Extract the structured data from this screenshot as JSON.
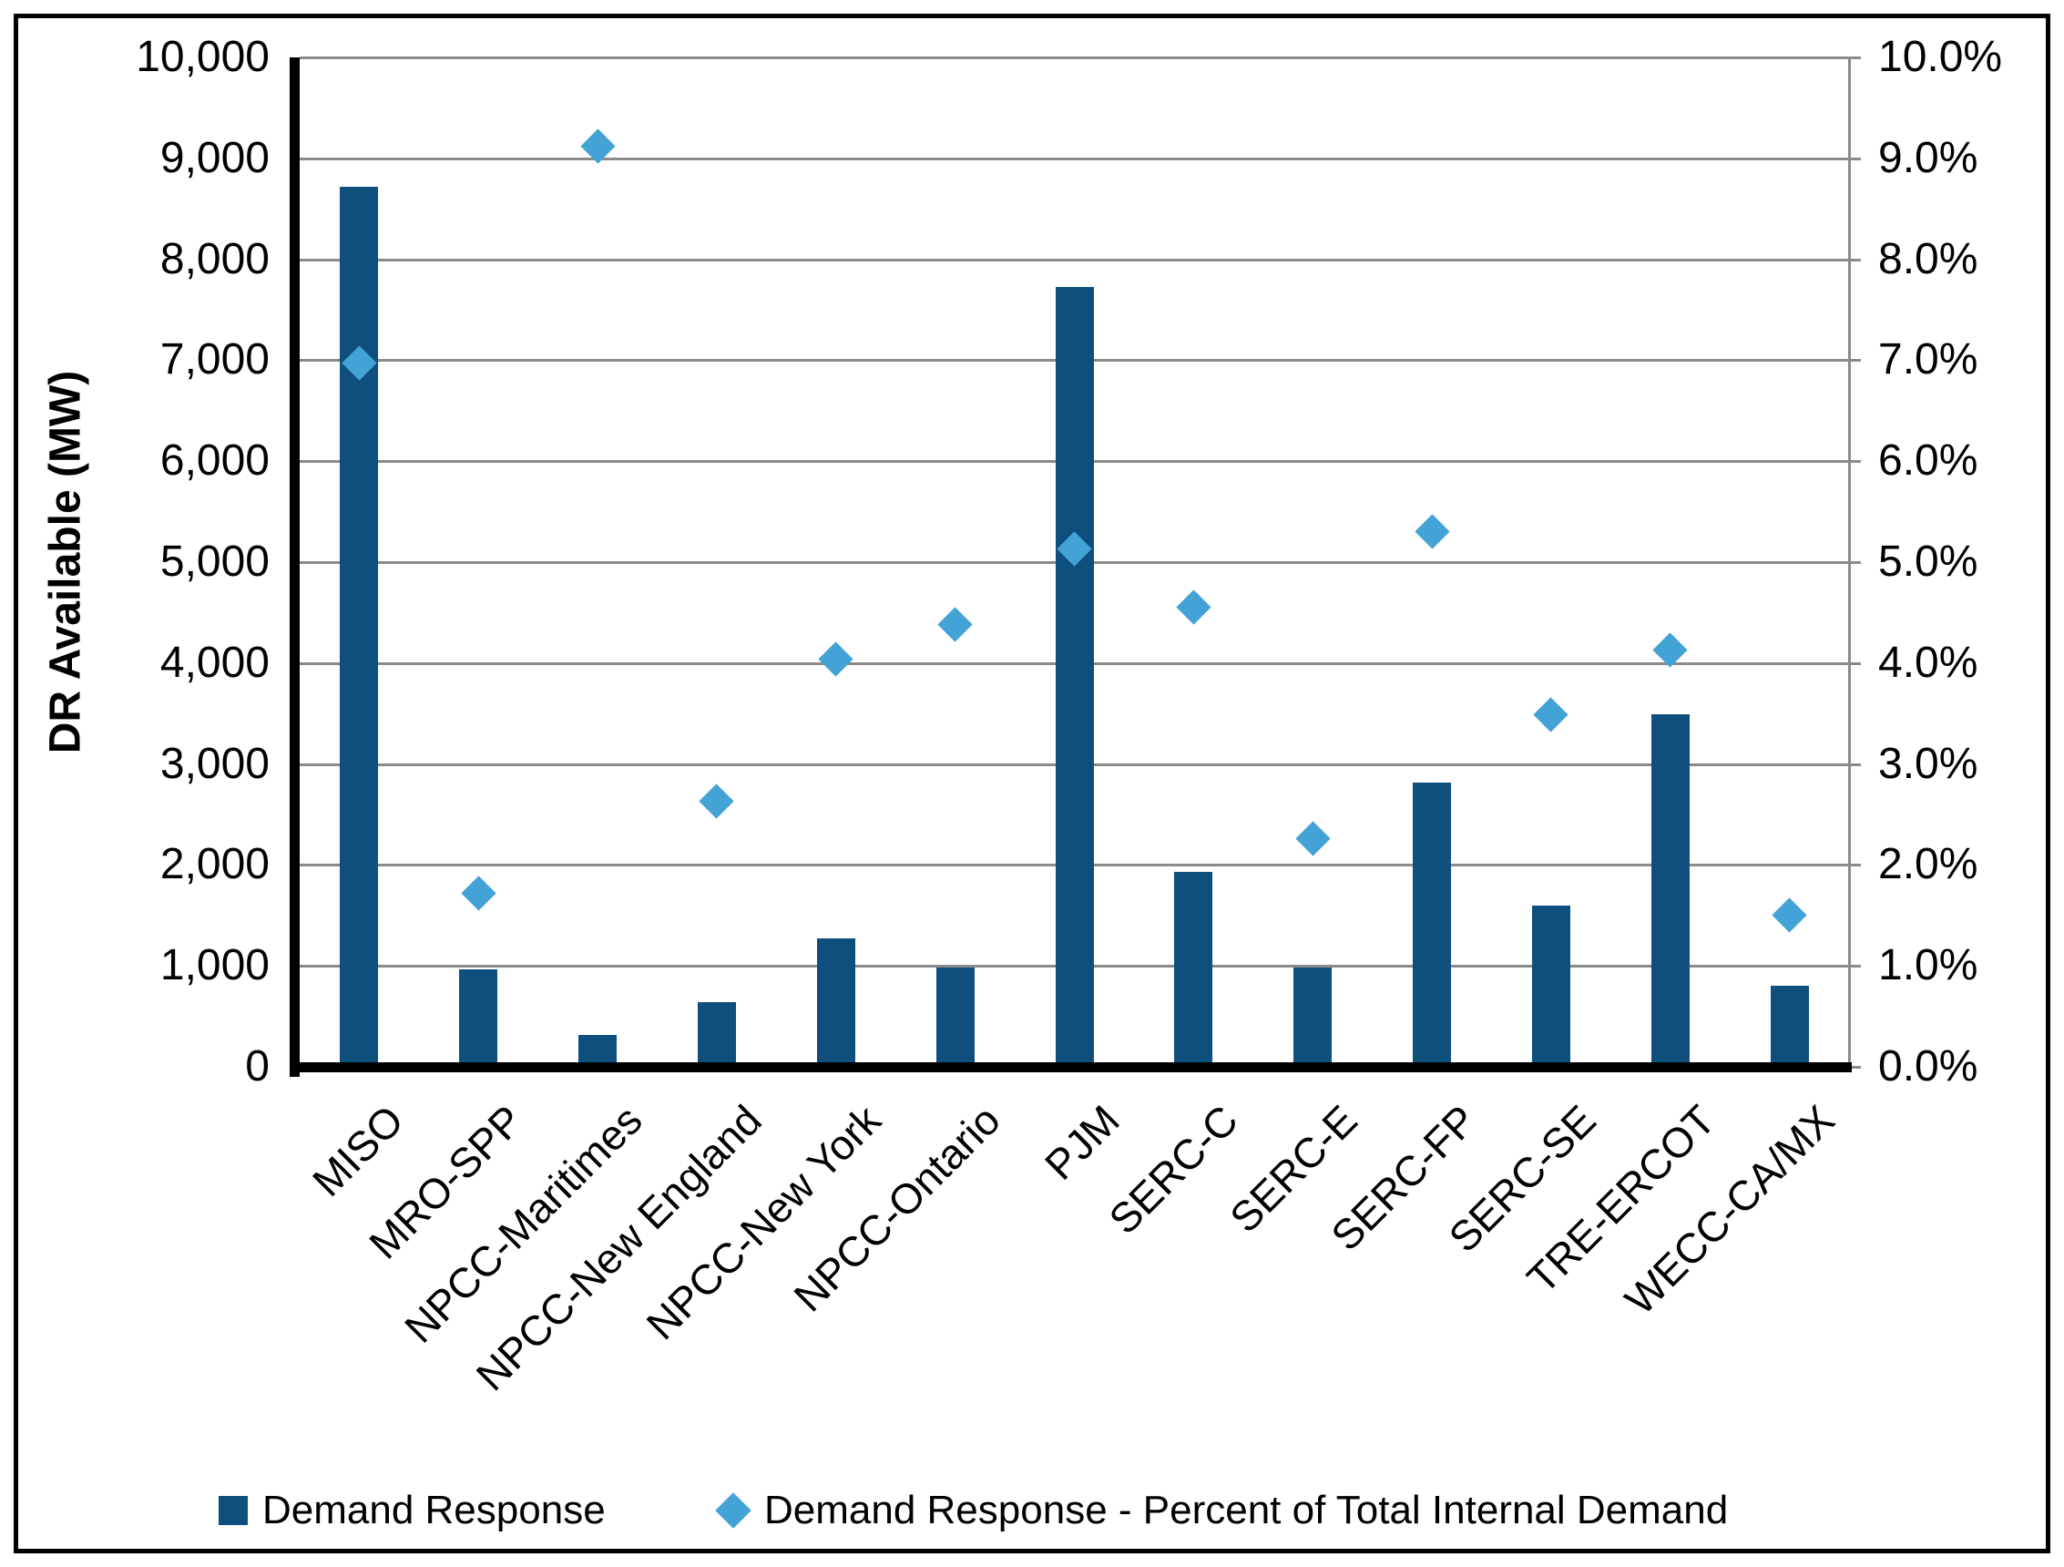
{
  "chart_data": {
    "type": "bar",
    "combo": "bar with scatter diamonds on secondary percent axis",
    "categories": [
      "MISO",
      "MRO-SPP",
      "NPCC-Maritimes",
      "NPCC-New England",
      "NPCC-New York",
      "NPCC-Ontario",
      "PJM",
      "SERC-C",
      "SERC-E",
      "SERC-FP",
      "SERC-SE",
      "TRE-ERCOT",
      "WECC-CA/MX"
    ],
    "series": [
      {
        "name": "Demand Response",
        "type": "bar",
        "axis": "left",
        "unit": "MW",
        "values": [
          8720,
          970,
          315,
          645,
          1270,
          985,
          7730,
          1935,
          980,
          2820,
          1595,
          3490,
          800
        ]
      },
      {
        "name": "Demand Response - Percent of Total Internal Demand",
        "type": "scatter",
        "marker": "diamond",
        "axis": "right",
        "unit": "percent",
        "values": [
          6.97,
          1.72,
          9.12,
          2.63,
          4.04,
          4.38,
          5.13,
          4.55,
          2.26,
          5.3,
          3.49,
          4.13,
          1.5
        ]
      }
    ],
    "left_axis": {
      "label": "DR Available (MW)",
      "min": 0,
      "max": 10000,
      "tick_step": 1000,
      "tick_labels": [
        "0",
        "1,000",
        "2,000",
        "3,000",
        "4,000",
        "5,000",
        "6,000",
        "7,000",
        "8,000",
        "9,000",
        "10,000"
      ]
    },
    "right_axis": {
      "label": "",
      "min": 0,
      "max": 10,
      "tick_step": 1,
      "tick_labels": [
        "0.0%",
        "1.0%",
        "2.0%",
        "3.0%",
        "4.0%",
        "5.0%",
        "6.0%",
        "7.0%",
        "8.0%",
        "9.0%",
        "10.0%"
      ]
    },
    "grid": true,
    "legend_position": "bottom"
  },
  "legend": {
    "items": [
      {
        "label": "Demand Response",
        "marker": "square"
      },
      {
        "label": "Demand Response - Percent of Total Internal Demand",
        "marker": "diamond"
      }
    ]
  },
  "colors": {
    "bar": "#0E4F7E",
    "diamond": "#43A2D6",
    "gridline": "#8A8A8A",
    "axis": "#000000",
    "text": "#000000",
    "background": "#FFFFFF"
  }
}
